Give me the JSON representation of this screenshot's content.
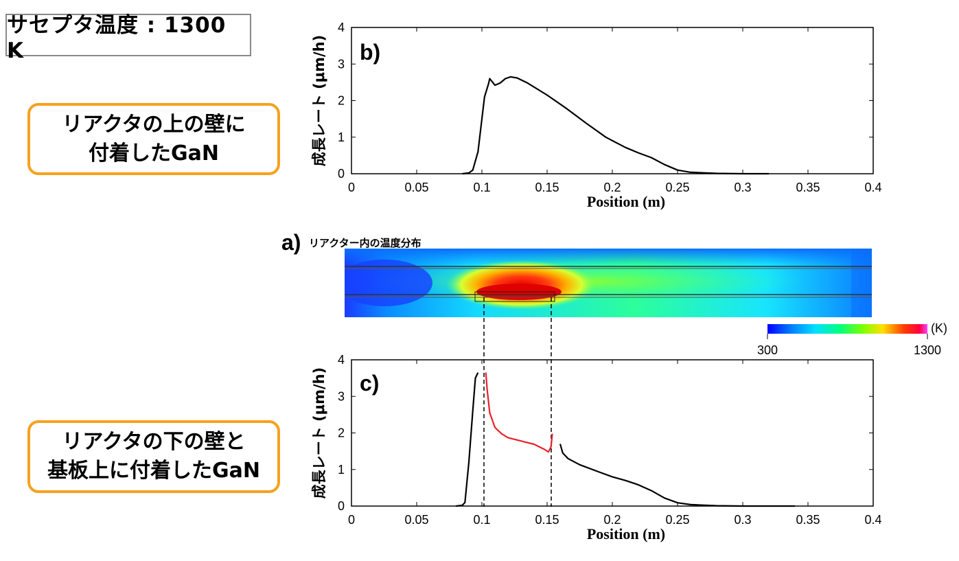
{
  "header_label": "サセプタ温度 : 1300 K",
  "callout_top": {
    "line1": "リアクタの上の壁に",
    "line2": "付着したGaN"
  },
  "callout_bottom": {
    "line1": "リアクタの下の壁と",
    "line2": "基板上に付着したGaN"
  },
  "heatmap": {
    "label": "a)",
    "title": "リアクター内の温度分布",
    "colorbar": {
      "min": "300",
      "max": "1300",
      "unit": "(K)"
    }
  },
  "colors": {
    "callout_border": "#f5a21e",
    "deposit_highlight": "#e8202a",
    "curve": "#000000"
  },
  "chart_data": [
    {
      "type": "line",
      "panel": "b)",
      "xlabel": "Position (m)",
      "ylabel": "成長レート (μm/h)",
      "xlim": [
        0,
        0.4
      ],
      "ylim": [
        0,
        4
      ],
      "xticks": [
        "0",
        "0.05",
        "0.1",
        "0.15",
        "0.2",
        "0.25",
        "0.3",
        "0.35",
        "0.4"
      ],
      "yticks": [
        "0",
        "1",
        "2",
        "3",
        "4"
      ],
      "series": [
        {
          "color": "#000000",
          "points": [
            [
              0.085,
              0
            ],
            [
              0.09,
              0.02
            ],
            [
              0.093,
              0.1
            ],
            [
              0.097,
              0.6
            ],
            [
              0.1,
              1.5
            ],
            [
              0.102,
              2.1
            ],
            [
              0.105,
              2.45
            ],
            [
              0.106,
              2.6
            ],
            [
              0.11,
              2.42
            ],
            [
              0.114,
              2.48
            ],
            [
              0.118,
              2.6
            ],
            [
              0.122,
              2.65
            ],
            [
              0.127,
              2.62
            ],
            [
              0.135,
              2.48
            ],
            [
              0.15,
              2.15
            ],
            [
              0.165,
              1.78
            ],
            [
              0.18,
              1.38
            ],
            [
              0.195,
              1.0
            ],
            [
              0.21,
              0.72
            ],
            [
              0.22,
              0.57
            ],
            [
              0.23,
              0.44
            ],
            [
              0.24,
              0.25
            ],
            [
              0.25,
              0.1
            ],
            [
              0.26,
              0.04
            ],
            [
              0.28,
              0.01
            ],
            [
              0.3,
              0.0
            ],
            [
              0.32,
              0.0
            ]
          ]
        }
      ]
    },
    {
      "type": "line",
      "panel": "c)",
      "xlabel": "Position (m)",
      "ylabel": "成長レート (μm/h)",
      "xlim": [
        0,
        0.4
      ],
      "ylim": [
        0,
        4
      ],
      "xticks": [
        "0",
        "0.05",
        "0.1",
        "0.15",
        "0.2",
        "0.25",
        "0.3",
        "0.35",
        "0.4"
      ],
      "yticks": [
        "0",
        "1",
        "2",
        "3",
        "4"
      ],
      "series": [
        {
          "color": "#000000",
          "points": [
            [
              0.08,
              0
            ],
            [
              0.085,
              0.02
            ],
            [
              0.087,
              0.1
            ],
            [
              0.09,
              1.2
            ],
            [
              0.093,
              2.6
            ],
            [
              0.095,
              3.5
            ],
            [
              0.097,
              3.65
            ]
          ]
        },
        {
          "color": "#e8202a",
          "points": [
            [
              0.103,
              3.65
            ],
            [
              0.104,
              3.2
            ],
            [
              0.106,
              2.55
            ],
            [
              0.11,
              2.15
            ],
            [
              0.115,
              1.98
            ],
            [
              0.12,
              1.87
            ],
            [
              0.13,
              1.78
            ],
            [
              0.14,
              1.69
            ],
            [
              0.148,
              1.55
            ],
            [
              0.151,
              1.48
            ],
            [
              0.153,
              1.62
            ],
            [
              0.154,
              1.98
            ]
          ]
        },
        {
          "color": "#000000",
          "points": [
            [
              0.16,
              1.7
            ],
            [
              0.162,
              1.45
            ],
            [
              0.166,
              1.3
            ],
            [
              0.175,
              1.13
            ],
            [
              0.19,
              0.93
            ],
            [
              0.2,
              0.8
            ],
            [
              0.21,
              0.7
            ],
            [
              0.22,
              0.58
            ],
            [
              0.23,
              0.42
            ],
            [
              0.24,
              0.22
            ],
            [
              0.25,
              0.09
            ],
            [
              0.26,
              0.04
            ],
            [
              0.28,
              0.01
            ],
            [
              0.3,
              0.0
            ],
            [
              0.34,
              0.0
            ]
          ]
        }
      ]
    }
  ]
}
